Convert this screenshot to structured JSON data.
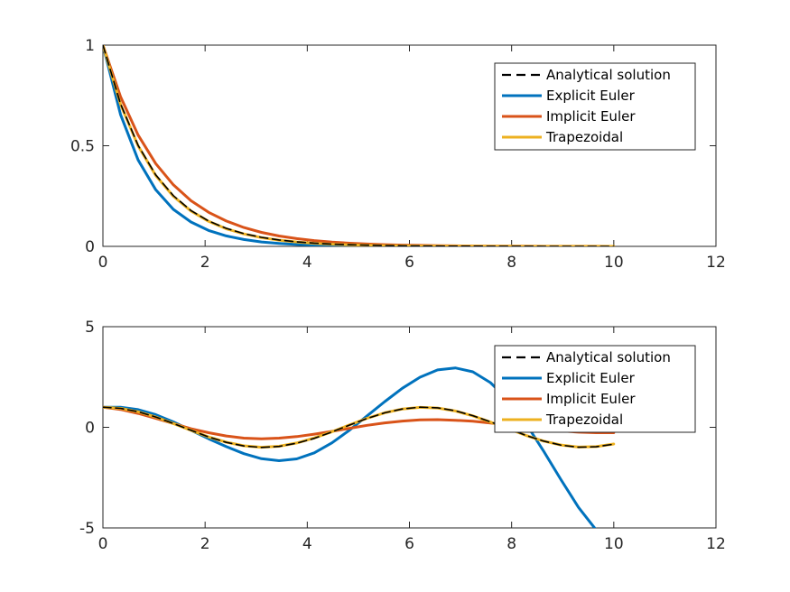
{
  "chart_data": [
    {
      "type": "line",
      "title": "",
      "xlabel": "",
      "ylabel": "",
      "xlim": [
        0,
        12
      ],
      "ylim": [
        0,
        1
      ],
      "xticks": [
        0,
        2,
        4,
        6,
        8,
        10,
        12
      ],
      "xtick_labels": [
        "0",
        "2",
        "4",
        "6",
        "8",
        "10",
        "12"
      ],
      "yticks": [
        0,
        0.5,
        1
      ],
      "ytick_labels": [
        "0",
        "0.5",
        "1"
      ],
      "grid": false,
      "legend_position": "top-right",
      "x": [
        0,
        0.345,
        0.69,
        1.034,
        1.379,
        1.724,
        2.069,
        2.414,
        2.759,
        3.103,
        3.448,
        3.793,
        4.138,
        4.483,
        4.828,
        5.172,
        5.517,
        5.862,
        6.207,
        6.552,
        6.897,
        7.241,
        7.586,
        7.931,
        8.276,
        8.621,
        8.966,
        9.31,
        9.655,
        10
      ],
      "series": [
        {
          "name": "Analytical solution",
          "color": "#000000",
          "dash": "dashed",
          "values": [
            1,
            0.708,
            0.502,
            0.355,
            0.252,
            0.178,
            0.126,
            0.0895,
            0.0634,
            0.0449,
            0.0318,
            0.0225,
            0.016,
            0.0113,
            0.008,
            0.0057,
            0.004,
            0.0028,
            0.002,
            0.0014,
            0.001,
            0.0007,
            0.0005,
            0.0004,
            0.0003,
            0.0002,
            0.0001,
            0.0001,
            0.0001,
            0
          ]
        },
        {
          "name": "Explicit Euler",
          "color": "#0072BD",
          "dash": "solid",
          "values": [
            1,
            0.655,
            0.429,
            0.281,
            0.184,
            0.121,
            0.079,
            0.052,
            0.034,
            0.022,
            0.0146,
            0.0096,
            0.0063,
            0.0041,
            0.0027,
            0.0018,
            0.0012,
            0.0008,
            0.0005,
            0.0003,
            0.0002,
            0.0001,
            0.0001,
            0,
            0,
            0,
            0,
            0,
            0,
            0
          ]
        },
        {
          "name": "Implicit Euler",
          "color": "#D95319",
          "dash": "solid",
          "values": [
            1,
            0.744,
            0.553,
            0.411,
            0.306,
            0.227,
            0.169,
            0.126,
            0.0935,
            0.0695,
            0.0517,
            0.0384,
            0.0286,
            0.0213,
            0.0158,
            0.0118,
            0.0087,
            0.0065,
            0.0048,
            0.0036,
            0.0027,
            0.002,
            0.0015,
            0.0011,
            0.0008,
            0.0006,
            0.0005,
            0.0003,
            0.0003,
            0.0002
          ]
        },
        {
          "name": "Trapezoidal",
          "color": "#EDB120",
          "dash": "solid",
          "values": [
            1,
            0.706,
            0.499,
            0.352,
            0.249,
            0.176,
            0.124,
            0.0876,
            0.0619,
            0.0437,
            0.0309,
            0.0218,
            0.0154,
            0.0109,
            0.0077,
            0.0054,
            0.0038,
            0.0027,
            0.0019,
            0.0013,
            0.001,
            0.0007,
            0.0005,
            0.0003,
            0.0002,
            0.0002,
            0.0001,
            0.0001,
            0.0001,
            0
          ]
        }
      ]
    },
    {
      "type": "line",
      "title": "",
      "xlabel": "",
      "ylabel": "",
      "xlim": [
        0,
        12
      ],
      "ylim": [
        -5,
        5
      ],
      "xticks": [
        0,
        2,
        4,
        6,
        8,
        10,
        12
      ],
      "xtick_labels": [
        "0",
        "2",
        "4",
        "6",
        "8",
        "10",
        "12"
      ],
      "yticks": [
        -5,
        0,
        5
      ],
      "ytick_labels": [
        "-5",
        "0",
        "5"
      ],
      "grid": false,
      "legend_position": "top-right",
      "x": [
        0,
        0.345,
        0.69,
        1.034,
        1.379,
        1.724,
        2.069,
        2.414,
        2.759,
        3.103,
        3.448,
        3.793,
        4.138,
        4.483,
        4.828,
        5.172,
        5.517,
        5.862,
        6.207,
        6.552,
        6.897,
        7.241,
        7.586,
        7.931,
        8.276,
        8.621,
        8.966,
        9.31,
        9.655,
        10
      ],
      "series": [
        {
          "name": "Analytical solution",
          "color": "#000000",
          "dash": "dashed",
          "values": [
            1,
            0.94,
            0.77,
            0.51,
            0.19,
            -0.15,
            -0.48,
            -0.75,
            -0.93,
            -1.0,
            -0.95,
            -0.79,
            -0.55,
            -0.23,
            0.11,
            0.44,
            0.72,
            0.91,
            1.0,
            0.97,
            0.82,
            0.58,
            0.27,
            -0.06,
            -0.4,
            -0.68,
            -0.89,
            -0.99,
            -0.97,
            -0.84
          ]
        },
        {
          "name": "Explicit Euler",
          "color": "#0072BD",
          "dash": "solid",
          "values": [
            1,
            1.0,
            0.88,
            0.63,
            0.27,
            -0.15,
            -0.57,
            -0.96,
            -1.31,
            -1.56,
            -1.66,
            -1.57,
            -1.27,
            -0.77,
            -0.14,
            0.57,
            1.28,
            1.94,
            2.49,
            2.85,
            2.95,
            2.76,
            2.22,
            1.36,
            0.2,
            -1.16,
            -2.6,
            -3.98,
            -5.1,
            -5.8
          ]
        },
        {
          "name": "Implicit Euler",
          "color": "#D95319",
          "dash": "solid",
          "values": [
            1,
            0.89,
            0.69,
            0.45,
            0.19,
            -0.07,
            -0.27,
            -0.43,
            -0.54,
            -0.57,
            -0.54,
            -0.46,
            -0.34,
            -0.2,
            -0.05,
            0.1,
            0.22,
            0.31,
            0.37,
            0.38,
            0.35,
            0.3,
            0.21,
            0.11,
            0,
            -0.1,
            -0.18,
            -0.24,
            -0.27,
            -0.27
          ]
        },
        {
          "name": "Trapezoidal",
          "color": "#EDB120",
          "dash": "solid",
          "values": [
            1,
            0.94,
            0.77,
            0.51,
            0.19,
            -0.15,
            -0.48,
            -0.74,
            -0.92,
            -0.99,
            -0.94,
            -0.78,
            -0.53,
            -0.22,
            0.12,
            0.45,
            0.72,
            0.91,
            0.99,
            0.96,
            0.81,
            0.57,
            0.26,
            -0.07,
            -0.4,
            -0.68,
            -0.88,
            -0.98,
            -0.96,
            -0.83
          ]
        }
      ]
    }
  ]
}
